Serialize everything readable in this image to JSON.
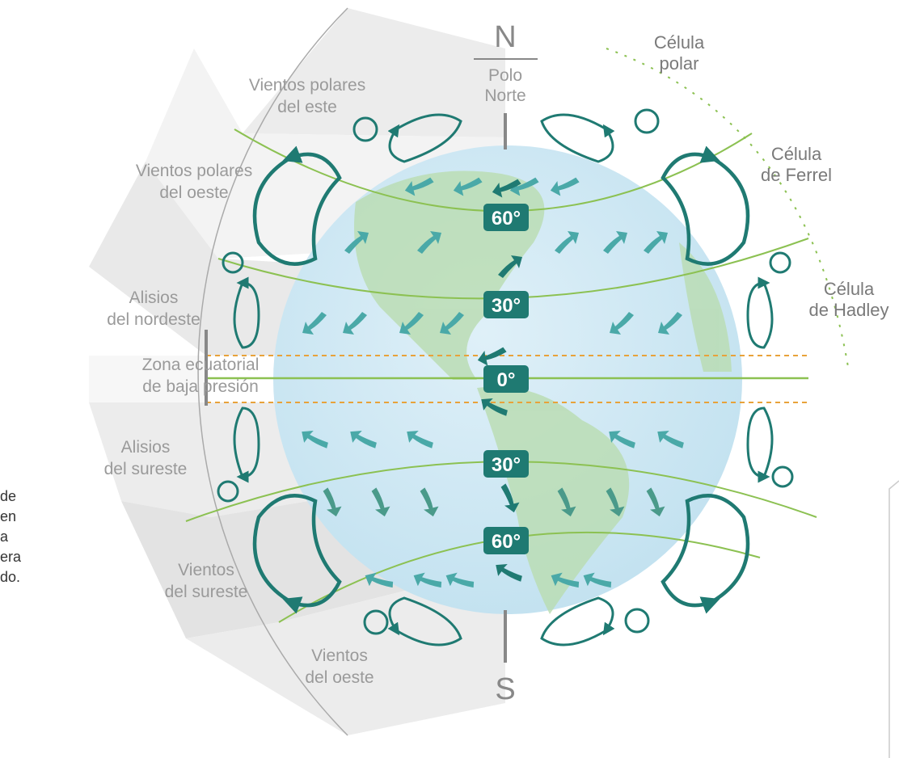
{
  "compass": {
    "north": "N",
    "north_pole": [
      "Polo",
      "Norte"
    ],
    "south": "S"
  },
  "winds": [
    {
      "lines": [
        "Vientos polares",
        "del este"
      ]
    },
    {
      "lines": [
        "Vientos polares",
        "del oeste"
      ]
    },
    {
      "lines": [
        "Alisios",
        "del nordeste"
      ]
    },
    {
      "lines": [
        "Zona ecuatorial",
        "de baja presión"
      ]
    },
    {
      "lines": [
        "Alisios",
        "del sureste"
      ]
    },
    {
      "lines": [
        "Vientos",
        "del sureste"
      ]
    },
    {
      "lines": [
        "Vientos",
        "del oeste"
      ]
    }
  ],
  "cells": [
    {
      "lines": [
        "Célula",
        "polar"
      ]
    },
    {
      "lines": [
        "Célula",
        "de Ferrel"
      ]
    },
    {
      "lines": [
        "Célula",
        "de Hadley"
      ]
    }
  ],
  "latitudes": [
    "60°",
    "30°",
    "0°",
    "30°",
    "60°"
  ],
  "cut_text": [
    "de",
    "en",
    "a",
    "era",
    "do."
  ]
}
